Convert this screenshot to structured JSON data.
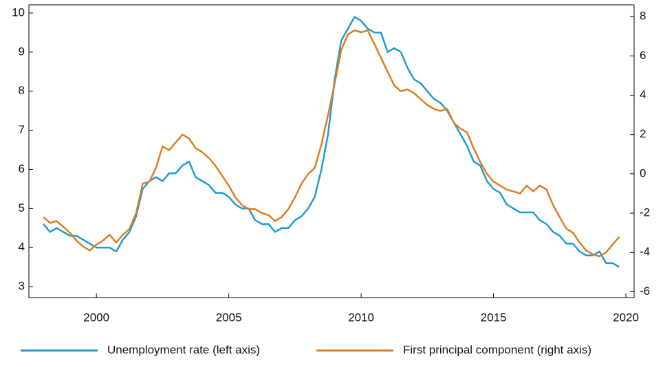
{
  "chart_data": {
    "type": "line",
    "x": [
      1998,
      1998.25,
      1998.5,
      1998.75,
      1999,
      1999.25,
      1999.5,
      1999.75,
      2000,
      2000.25,
      2000.5,
      2000.75,
      2001,
      2001.25,
      2001.5,
      2001.75,
      2002,
      2002.25,
      2002.5,
      2002.75,
      2003,
      2003.25,
      2003.5,
      2003.75,
      2004,
      2004.25,
      2004.5,
      2004.75,
      2005,
      2005.25,
      2005.5,
      2005.75,
      2006,
      2006.25,
      2006.5,
      2006.75,
      2007,
      2007.25,
      2007.5,
      2007.75,
      2008,
      2008.25,
      2008.5,
      2008.75,
      2009,
      2009.25,
      2009.5,
      2009.75,
      2010,
      2010.25,
      2010.5,
      2010.75,
      2011,
      2011.25,
      2011.5,
      2011.75,
      2012,
      2012.25,
      2012.5,
      2012.75,
      2013,
      2013.25,
      2013.5,
      2013.75,
      2014,
      2014.25,
      2014.5,
      2014.75,
      2015,
      2015.25,
      2015.5,
      2015.75,
      2016,
      2016.25,
      2016.5,
      2016.75,
      2017,
      2017.25,
      2017.5,
      2017.75,
      2018,
      2018.25,
      2018.5,
      2018.75,
      2019,
      2019.25,
      2019.5,
      2019.75
    ],
    "series": [
      {
        "name": "Unemployment rate (left axis)",
        "color": "#1f9bd1",
        "axis": "y",
        "values": [
          4.6,
          4.4,
          4.5,
          4.4,
          4.3,
          4.3,
          4.2,
          4.1,
          4.0,
          4.0,
          4.0,
          3.9,
          4.2,
          4.4,
          4.8,
          5.5,
          5.7,
          5.8,
          5.7,
          5.9,
          5.9,
          6.1,
          6.2,
          5.8,
          5.7,
          5.6,
          5.4,
          5.4,
          5.3,
          5.1,
          5.0,
          5.0,
          4.7,
          4.6,
          4.6,
          4.4,
          4.5,
          4.5,
          4.7,
          4.8,
          5.0,
          5.3,
          6.0,
          6.9,
          8.3,
          9.3,
          9.6,
          9.9,
          9.8,
          9.6,
          9.5,
          9.5,
          9.0,
          9.1,
          9.0,
          8.6,
          8.3,
          8.2,
          8.0,
          7.8,
          7.7,
          7.5,
          7.2,
          6.9,
          6.6,
          6.2,
          6.1,
          5.7,
          5.5,
          5.4,
          5.1,
          5.0,
          4.9,
          4.9,
          4.9,
          4.7,
          4.6,
          4.4,
          4.3,
          4.1,
          4.1,
          3.9,
          3.8,
          3.8,
          3.9,
          3.6,
          3.6,
          3.5
        ]
      },
      {
        "name": "First principal component (right axis)",
        "color": "#e07b1f",
        "axis": "y2",
        "values": [
          -2.2,
          -2.5,
          -2.4,
          -2.7,
          -3.0,
          -3.4,
          -3.7,
          -3.9,
          -3.6,
          -3.4,
          -3.1,
          -3.5,
          -3.1,
          -2.8,
          -2.0,
          -0.5,
          -0.4,
          0.3,
          1.4,
          1.2,
          1.6,
          2.0,
          1.8,
          1.3,
          1.1,
          0.8,
          0.4,
          -0.1,
          -0.6,
          -1.2,
          -1.6,
          -1.8,
          -1.8,
          -2.0,
          -2.1,
          -2.4,
          -2.2,
          -1.8,
          -1.2,
          -0.5,
          0.0,
          0.3,
          1.5,
          3.0,
          4.6,
          6.3,
          7.1,
          7.3,
          7.2,
          7.3,
          6.6,
          5.9,
          5.2,
          4.5,
          4.2,
          4.3,
          4.1,
          3.8,
          3.5,
          3.3,
          3.2,
          3.3,
          2.6,
          2.3,
          2.1,
          1.3,
          0.6,
          0.0,
          -0.4,
          -0.6,
          -0.8,
          -0.9,
          -1.0,
          -0.6,
          -0.9,
          -0.6,
          -0.8,
          -1.6,
          -2.2,
          -2.8,
          -3.0,
          -3.5,
          -3.9,
          -4.1,
          -4.2,
          -4.0,
          -3.6,
          -3.2
        ]
      }
    ],
    "xlim": [
      1997.45,
      2020.31
    ],
    "xticks": [
      2000,
      2005,
      2010,
      2015,
      2020
    ],
    "ylim": [
      2.72,
      10.21
    ],
    "yticks": [
      3,
      4,
      5,
      6,
      7,
      8,
      9,
      10
    ],
    "y2lim": [
      -6.3,
      8.6
    ],
    "y2ticks": [
      -6,
      -4,
      -2,
      0,
      2,
      4,
      6,
      8
    ],
    "legend": "bottom"
  }
}
